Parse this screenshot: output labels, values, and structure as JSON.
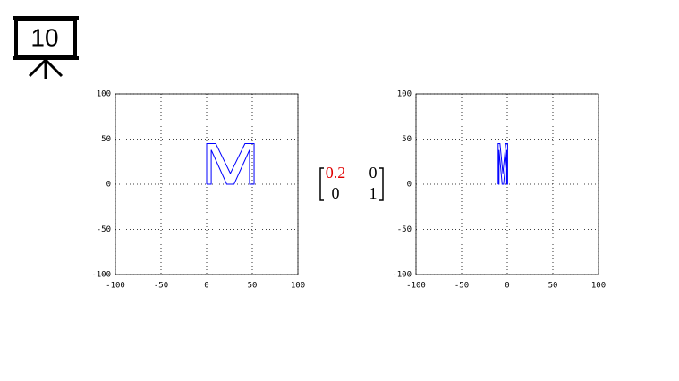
{
  "slide_number": "10",
  "matrix": {
    "rows": [
      [
        0.2,
        0
      ],
      [
        0,
        1
      ]
    ],
    "highlight_color": "#e00000"
  },
  "chart_data": [
    {
      "type": "line",
      "x": [
        0,
        0,
        10,
        26,
        42,
        52,
        52,
        47,
        47,
        30,
        22,
        5,
        5,
        0
      ],
      "series": [
        {
          "color": "#0000ff",
          "values": [
            0,
            45,
            45,
            12,
            45,
            45,
            0,
            0,
            38,
            0,
            0,
            38,
            0,
            0
          ]
        }
      ],
      "xlim": [
        -100,
        100
      ],
      "ylim": [
        -100,
        100
      ],
      "xticks": [
        -100,
        -50,
        0,
        50,
        100
      ],
      "yticks": [
        -100,
        -50,
        0,
        50,
        100
      ],
      "grid": true
    },
    {
      "type": "line",
      "x": [
        -10,
        -10,
        -8,
        -4.8,
        -1.6,
        0.4,
        0.4,
        -0.6,
        -0.6,
        -4,
        -5.6,
        -9,
        -9,
        -10
      ],
      "series": [
        {
          "color": "#0000ff",
          "values": [
            0,
            45,
            45,
            12,
            45,
            45,
            0,
            0,
            38,
            0,
            0,
            38,
            0,
            0
          ]
        }
      ],
      "xlim": [
        -100,
        100
      ],
      "ylim": [
        -100,
        100
      ],
      "xticks": [
        -100,
        -50,
        0,
        50,
        100
      ],
      "yticks": [
        -100,
        -50,
        0,
        50,
        100
      ],
      "grid": true
    }
  ]
}
